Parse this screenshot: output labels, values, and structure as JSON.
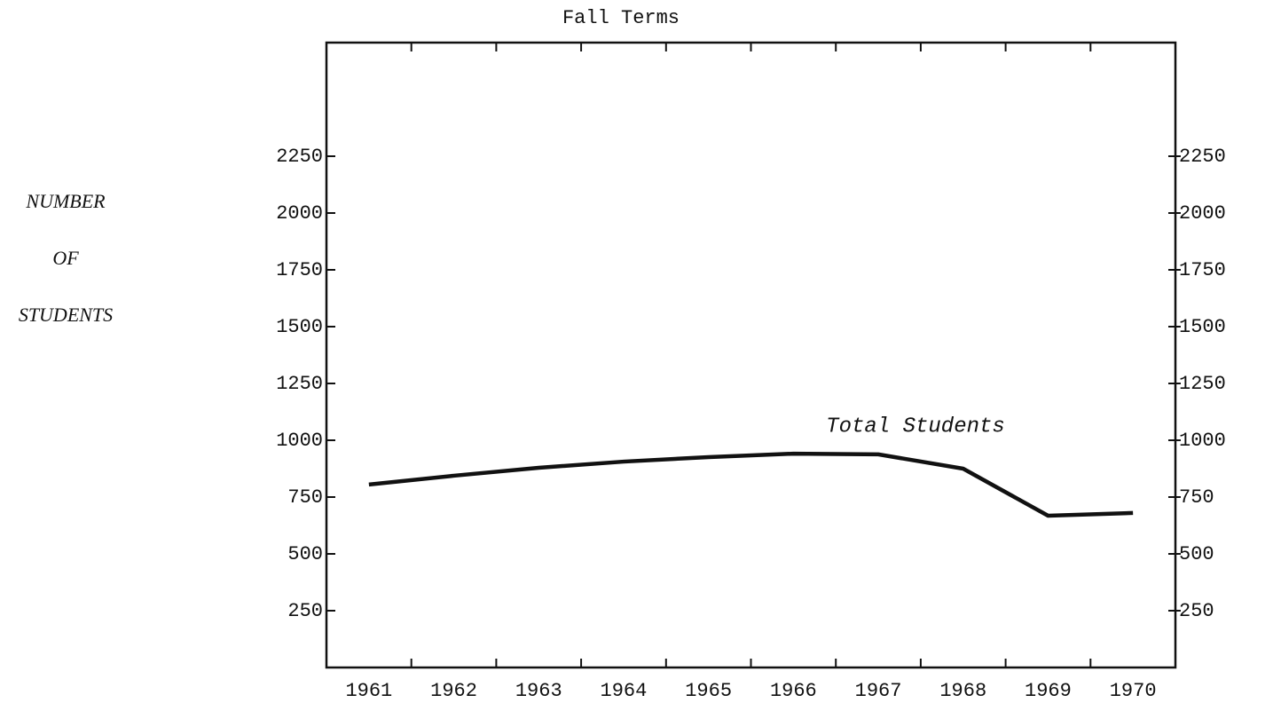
{
  "chart_data": {
    "type": "line",
    "title": "Fall Terms",
    "y_label_lines": [
      "NUMBER",
      "OF",
      "STUDENTS"
    ],
    "annotation": "Total Students",
    "categories": [
      "1961",
      "1962",
      "1963",
      "1964",
      "1965",
      "1966",
      "1967",
      "1968",
      "1969",
      "1970"
    ],
    "series": [
      {
        "name": "Total Students",
        "color": "#111111",
        "values": [
          805,
          844,
          879,
          906,
          926,
          941,
          938,
          875,
          668,
          680
        ]
      }
    ],
    "ylim": [
      0,
      2750
    ],
    "yticks": [
      250,
      500,
      750,
      1000,
      1250,
      1500,
      1750,
      2000,
      2250
    ],
    "right_axis_mirror": true,
    "grid": false
  }
}
